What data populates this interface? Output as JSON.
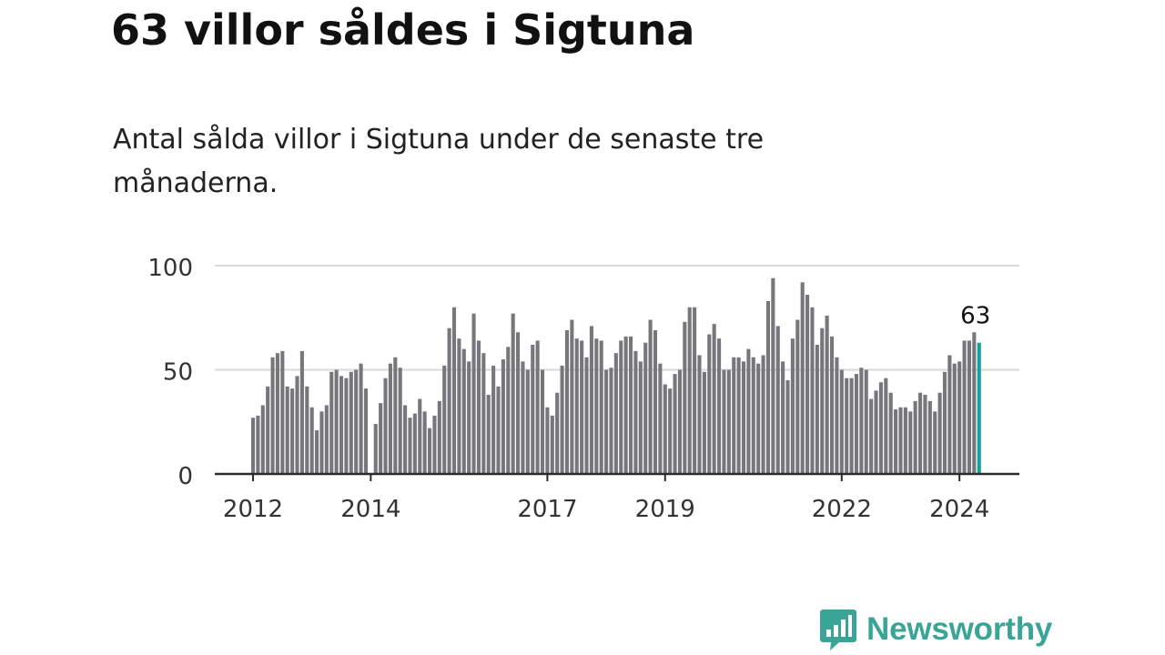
{
  "title": "63 villor såldes i Sigtuna",
  "subtitle": "Antal sålda villor i Sigtuna under de senaste tre månaderna.",
  "brand": {
    "name": "Newsworthy",
    "color": "#3aa597"
  },
  "colors": {
    "bar": "#77767b",
    "highlight": "#15a19a",
    "grid": "#d9d9d9",
    "axis": "#2b2b2b",
    "text": "#333333"
  },
  "chart_data": {
    "type": "bar",
    "title": "63 villor såldes i Sigtuna",
    "xlabel": "",
    "ylabel": "",
    "ylim": [
      0,
      100
    ],
    "yticks": [
      0,
      50,
      100
    ],
    "xticks": [
      {
        "label": "2012",
        "index": 0
      },
      {
        "label": "2014",
        "index": 24
      },
      {
        "label": "2017",
        "index": 60
      },
      {
        "label": "2019",
        "index": 84
      },
      {
        "label": "2022",
        "index": 120
      },
      {
        "label": "2024",
        "index": 144
      }
    ],
    "start": "2012-01",
    "values": [
      27,
      28,
      33,
      42,
      56,
      58,
      59,
      42,
      41,
      47,
      59,
      42,
      32,
      21,
      30,
      33,
      49,
      50,
      47,
      46,
      49,
      50,
      53,
      41,
      0,
      24,
      34,
      46,
      53,
      56,
      51,
      33,
      27,
      29,
      36,
      30,
      22,
      28,
      35,
      52,
      70,
      80,
      65,
      60,
      54,
      77,
      64,
      58,
      38,
      52,
      42,
      55,
      61,
      77,
      68,
      54,
      50,
      62,
      64,
      50,
      32,
      28,
      39,
      52,
      69,
      74,
      65,
      64,
      56,
      71,
      65,
      64,
      50,
      51,
      58,
      64,
      66,
      66,
      59,
      54,
      63,
      74,
      69,
      53,
      43,
      41,
      48,
      50,
      73,
      80,
      80,
      57,
      49,
      67,
      72,
      65,
      50,
      50,
      56,
      56,
      54,
      60,
      56,
      53,
      57,
      83,
      94,
      71,
      54,
      45,
      65,
      74,
      92,
      86,
      80,
      62,
      70,
      76,
      66,
      56,
      50,
      46,
      46,
      48,
      51,
      50,
      36,
      40,
      44,
      46,
      39,
      31,
      32,
      32,
      30,
      35,
      39,
      38,
      35,
      30,
      39,
      49,
      57,
      53,
      54,
      64,
      64,
      68,
      63
    ],
    "highlight_index": 148,
    "annotation": "63"
  }
}
